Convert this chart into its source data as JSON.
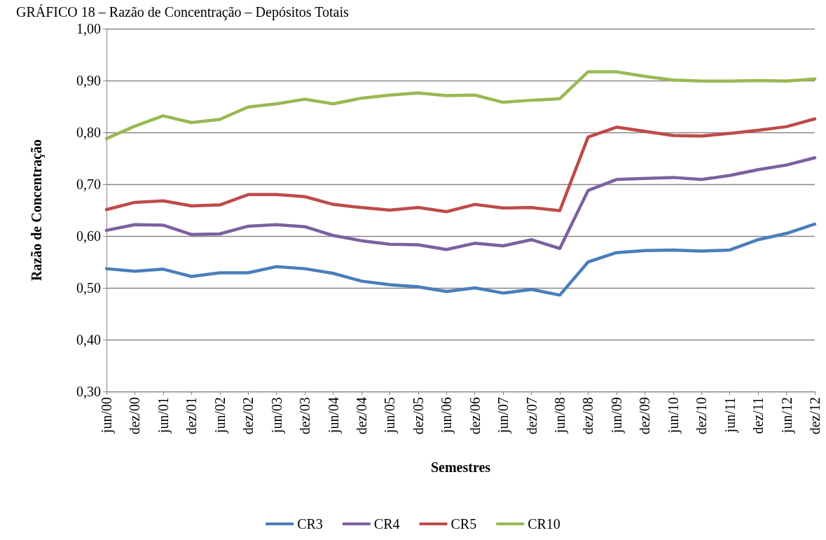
{
  "chart_data": {
    "type": "line",
    "title": "GRÁFICO 18 – Razão de Concentração – Depósitos Totais",
    "xlabel": "Semestres",
    "ylabel": "Razão de Concentração",
    "categories": [
      "jun/00",
      "dez/00",
      "jun/01",
      "dez/01",
      "jun/02",
      "dez/02",
      "jun/03",
      "dez/03",
      "jun/04",
      "dez/04",
      "jun/05",
      "dez/05",
      "jun/06",
      "dez/06",
      "jun/07",
      "dez/07",
      "jun/08",
      "dez/08",
      "jun/09",
      "dez/09",
      "jun/10",
      "dez/10",
      "jun/11",
      "dez/11",
      "jun/12",
      "dez/12"
    ],
    "series": [
      {
        "name": "CR3",
        "color": "#4a7ebb",
        "values": [
          0.537,
          0.532,
          0.536,
          0.522,
          0.529,
          0.529,
          0.541,
          0.537,
          0.528,
          0.513,
          0.506,
          0.502,
          0.493,
          0.5,
          0.49,
          0.497,
          0.486,
          0.55,
          0.568,
          0.572,
          0.573,
          0.571,
          0.573,
          0.593,
          0.605,
          0.623
        ]
      },
      {
        "name": "CR4",
        "color": "#7d60a0",
        "values": [
          0.611,
          0.622,
          0.621,
          0.603,
          0.604,
          0.619,
          0.622,
          0.618,
          0.601,
          0.591,
          0.584,
          0.583,
          0.574,
          0.586,
          0.581,
          0.593,
          0.576,
          0.688,
          0.709,
          0.711,
          0.713,
          0.709,
          0.717,
          0.728,
          0.737,
          0.751
        ]
      },
      {
        "name": "CR5",
        "color": "#be4b48",
        "values": [
          0.651,
          0.665,
          0.668,
          0.658,
          0.66,
          0.68,
          0.68,
          0.676,
          0.661,
          0.655,
          0.65,
          0.655,
          0.647,
          0.661,
          0.654,
          0.655,
          0.649,
          0.791,
          0.81,
          0.802,
          0.794,
          0.793,
          0.798,
          0.804,
          0.811,
          0.826
        ]
      },
      {
        "name": "CR10",
        "color": "#98b954",
        "values": [
          0.788,
          0.812,
          0.832,
          0.819,
          0.825,
          0.849,
          0.855,
          0.864,
          0.855,
          0.866,
          0.872,
          0.876,
          0.871,
          0.872,
          0.858,
          0.862,
          0.865,
          0.917,
          0.917,
          0.908,
          0.901,
          0.899,
          0.899,
          0.9,
          0.899,
          0.903
        ]
      }
    ],
    "ylim": [
      0.3,
      1.0
    ],
    "yticks": [
      {
        "value": 0.3,
        "label": "0,30"
      },
      {
        "value": 0.4,
        "label": "0,40"
      },
      {
        "value": 0.5,
        "label": "0,50"
      },
      {
        "value": 0.6,
        "label": "0,60"
      },
      {
        "value": 0.7,
        "label": "0,70"
      },
      {
        "value": 0.8,
        "label": "0,80"
      },
      {
        "value": 0.9,
        "label": "0,90"
      },
      {
        "value": 1.0,
        "label": "1,00"
      }
    ],
    "grid": "y",
    "legend": "bottom",
    "marker": "none",
    "line_style": "solid"
  }
}
